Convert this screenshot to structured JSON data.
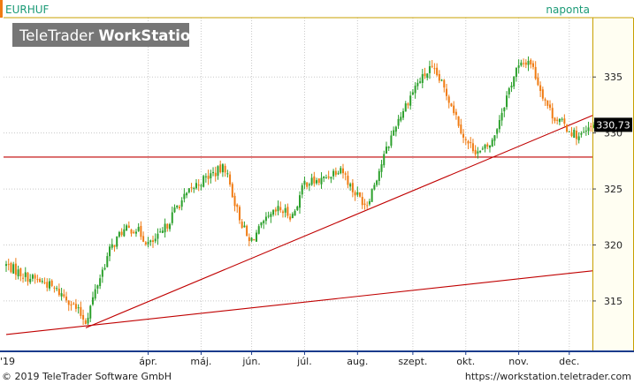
{
  "symbol": "EURHUF",
  "period": "naponta",
  "watermark": {
    "prefix": "TeleTrader ",
    "bold": "WorkStation"
  },
  "last_price_label": "330,73",
  "footer": {
    "copyright": "© 2019 TeleTrader Software GmbH",
    "url": "https://workstation.teletrader.com"
  },
  "colors": {
    "up": "#2ca02c",
    "down": "#f07b12",
    "trendline": "#c00000",
    "grid": "#c8c8c8",
    "accent": "#1a9a76"
  },
  "chart_data": {
    "type": "candlestick",
    "title": "EURHUF",
    "ylim": [
      310.5,
      340.3
    ],
    "yticks": [
      315,
      320,
      325,
      330,
      335
    ],
    "ytick_labels": [
      "315",
      "320",
      "325",
      "330",
      "335"
    ],
    "x_start_label": "'19",
    "month_labels": [
      "ápr.",
      "máj.",
      "jún.",
      "júl.",
      "aug.",
      "szept.",
      "okt.",
      "nov.",
      "dec."
    ],
    "trading_days": 245,
    "month_start_index": [
      59,
      81,
      102,
      124,
      146,
      169,
      191,
      213,
      234
    ],
    "price_path": [
      [
        0,
        318.2
      ],
      [
        10,
        317.2
      ],
      [
        20,
        316.6
      ],
      [
        31,
        315.2
      ],
      [
        40,
        313.2
      ],
      [
        46,
        316.6
      ],
      [
        52,
        319.5
      ],
      [
        58,
        321.2
      ],
      [
        65,
        321.5
      ],
      [
        72,
        320.0
      ],
      [
        78,
        320.9
      ],
      [
        86,
        323.5
      ],
      [
        95,
        325.3
      ],
      [
        103,
        326.3
      ],
      [
        110,
        326.9
      ],
      [
        116,
        323.1
      ],
      [
        122,
        320.2
      ],
      [
        130,
        322.0
      ],
      [
        137,
        323.2
      ],
      [
        144,
        322.6
      ],
      [
        150,
        325.6
      ],
      [
        158,
        325.7
      ],
      [
        168,
        327.0
      ],
      [
        174,
        324.9
      ],
      [
        181,
        323.6
      ],
      [
        187,
        326.5
      ],
      [
        196,
        330.9
      ],
      [
        206,
        334.3
      ],
      [
        213,
        335.7
      ],
      [
        217,
        335.0
      ],
      [
        224,
        332.5
      ],
      [
        231,
        329.2
      ],
      [
        238,
        328.2
      ],
      [
        244,
        329.1
      ],
      [
        250,
        332.5
      ],
      [
        256,
        335.6
      ],
      [
        263,
        336.6
      ],
      [
        268,
        334.1
      ],
      [
        274,
        331.7
      ],
      [
        282,
        330.4
      ],
      [
        288,
        329.6
      ],
      [
        293,
        330.3
      ],
      [
        295,
        330.7
      ]
    ],
    "last_value": 330.73,
    "horizontal_lines": [
      327.85
    ],
    "trend_lines": [
      {
        "from": [
          0,
          312.0
        ],
        "to": [
          295,
          317.7
        ]
      },
      {
        "from": [
          40,
          312.6
        ],
        "to": [
          295,
          331.6
        ]
      }
    ]
  }
}
